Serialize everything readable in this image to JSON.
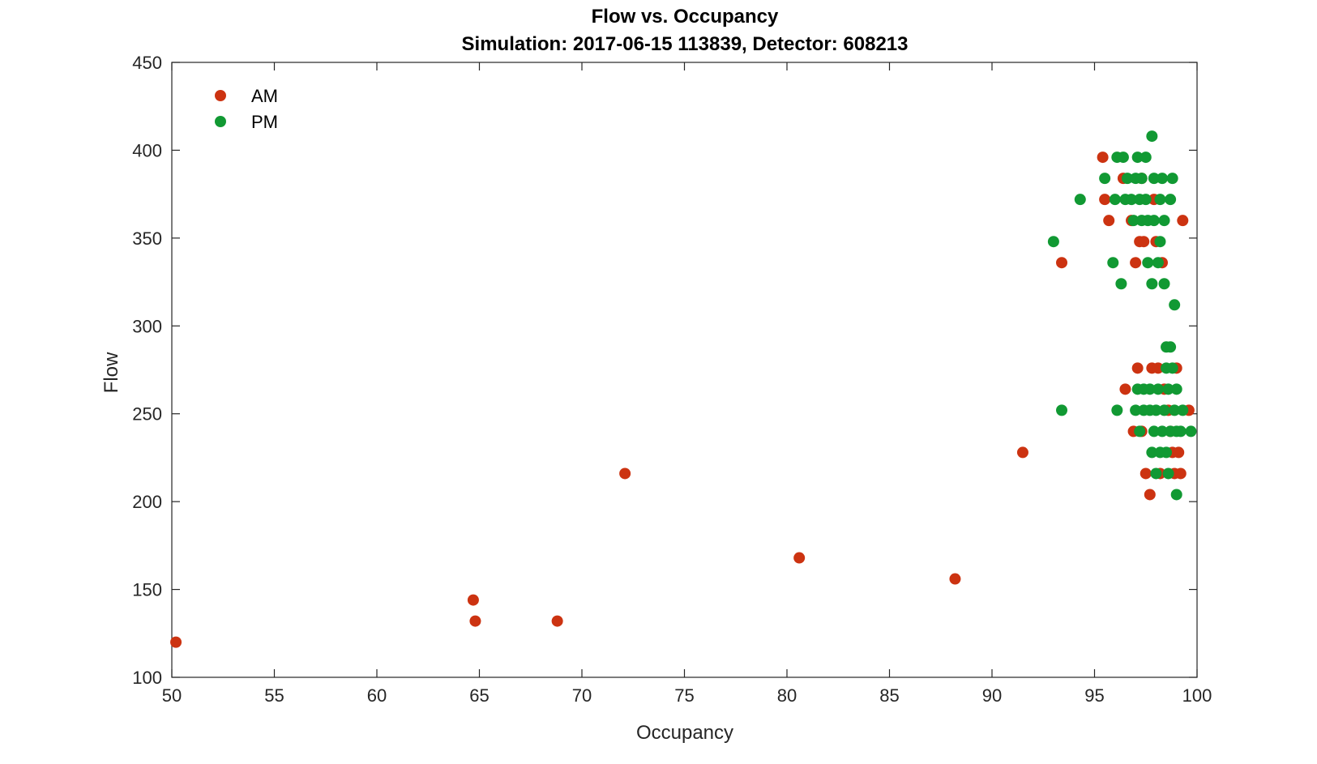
{
  "chart_data": {
    "type": "scatter",
    "title": "Flow vs. Occupancy",
    "subtitle": "Simulation:  2017-06-15 113839,  Detector:  608213",
    "xlabel": "Occupancy",
    "ylabel": "Flow",
    "xlim": [
      50,
      100
    ],
    "ylim": [
      100,
      450
    ],
    "xticks": [
      50,
      55,
      60,
      65,
      70,
      75,
      80,
      85,
      90,
      95,
      100
    ],
    "yticks": [
      100,
      150,
      200,
      250,
      300,
      350,
      400,
      450
    ],
    "grid": false,
    "legend_position": "top-left",
    "colors": {
      "am": "#cc3311",
      "pm": "#119933"
    },
    "series": [
      {
        "name": "AM",
        "color": "#cc3311",
        "points": [
          [
            50.2,
            120
          ],
          [
            64.7,
            144
          ],
          [
            64.8,
            132
          ],
          [
            68.8,
            132
          ],
          [
            72.1,
            216
          ],
          [
            80.6,
            168
          ],
          [
            88.2,
            156
          ],
          [
            91.5,
            228
          ],
          [
            93.4,
            336
          ],
          [
            95.4,
            396
          ],
          [
            95.5,
            372
          ],
          [
            95.7,
            360
          ],
          [
            96.4,
            384
          ],
          [
            96.5,
            264
          ],
          [
            96.8,
            360
          ],
          [
            96.9,
            240
          ],
          [
            97.0,
            336
          ],
          [
            97.1,
            276
          ],
          [
            97.2,
            348
          ],
          [
            97.3,
            384
          ],
          [
            97.4,
            348
          ],
          [
            97.5,
            216
          ],
          [
            97.7,
            204
          ],
          [
            97.8,
            276
          ],
          [
            97.9,
            372
          ],
          [
            98.0,
            348
          ],
          [
            98.1,
            276
          ],
          [
            98.3,
            336
          ],
          [
            98.4,
            264
          ],
          [
            98.6,
            252
          ],
          [
            98.7,
            240
          ],
          [
            98.8,
            228
          ],
          [
            98.9,
            216
          ],
          [
            99.0,
            276
          ],
          [
            99.1,
            228
          ],
          [
            99.2,
            216
          ],
          [
            99.3,
            360
          ],
          [
            99.6,
            252
          ],
          [
            97.3,
            240
          ],
          [
            98.2,
            216
          ]
        ]
      },
      {
        "name": "PM",
        "color": "#119933",
        "points": [
          [
            93.0,
            348
          ],
          [
            93.4,
            252
          ],
          [
            94.3,
            372
          ],
          [
            95.5,
            384
          ],
          [
            95.9,
            336
          ],
          [
            96.0,
            372
          ],
          [
            96.1,
            396
          ],
          [
            96.1,
            252
          ],
          [
            96.3,
            324
          ],
          [
            96.4,
            396
          ],
          [
            96.5,
            372
          ],
          [
            96.6,
            384
          ],
          [
            96.8,
            372
          ],
          [
            96.9,
            360
          ],
          [
            97.0,
            384
          ],
          [
            97.0,
            252
          ],
          [
            97.1,
            396
          ],
          [
            97.1,
            264
          ],
          [
            97.2,
            372
          ],
          [
            97.2,
            240
          ],
          [
            97.3,
            360
          ],
          [
            97.3,
            384
          ],
          [
            97.4,
            252
          ],
          [
            97.4,
            264
          ],
          [
            97.5,
            396
          ],
          [
            97.5,
            372
          ],
          [
            97.6,
            336
          ],
          [
            97.6,
            360
          ],
          [
            97.7,
            252
          ],
          [
            97.7,
            264
          ],
          [
            97.8,
            408
          ],
          [
            97.8,
            324
          ],
          [
            97.8,
            228
          ],
          [
            97.9,
            384
          ],
          [
            97.9,
            360
          ],
          [
            97.9,
            240
          ],
          [
            98.0,
            216
          ],
          [
            98.0,
            252
          ],
          [
            98.1,
            264
          ],
          [
            98.1,
            336
          ],
          [
            98.2,
            372
          ],
          [
            98.2,
            348
          ],
          [
            98.2,
            228
          ],
          [
            98.3,
            240
          ],
          [
            98.3,
            384
          ],
          [
            98.4,
            360
          ],
          [
            98.4,
            324
          ],
          [
            98.4,
            252
          ],
          [
            98.5,
            288
          ],
          [
            98.5,
            276
          ],
          [
            98.5,
            228
          ],
          [
            98.6,
            216
          ],
          [
            98.6,
            264
          ],
          [
            98.7,
            372
          ],
          [
            98.7,
            288
          ],
          [
            98.7,
            240
          ],
          [
            98.8,
            384
          ],
          [
            98.8,
            276
          ],
          [
            98.9,
            252
          ],
          [
            98.9,
            312
          ],
          [
            99.0,
            204
          ],
          [
            99.0,
            264
          ],
          [
            99.0,
            240
          ],
          [
            99.2,
            240
          ],
          [
            99.3,
            252
          ],
          [
            99.7,
            240
          ]
        ]
      }
    ]
  }
}
